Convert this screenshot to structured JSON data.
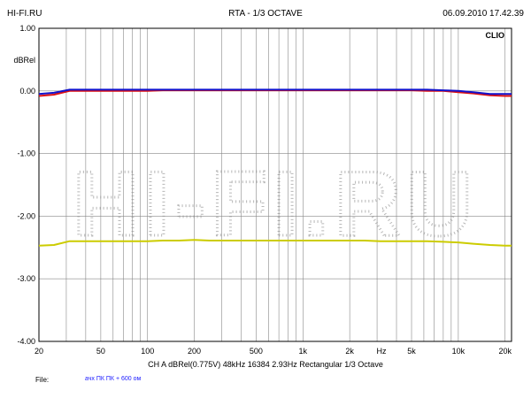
{
  "header": {
    "left": "HI-FI.RU",
    "center": "RTA - 1/3 OCTAVE",
    "right": "06.09.2010 17.42.39"
  },
  "info_line": "CH A  dBRel(0.775V)  48kHz  16384  2.93Hz  Rectangular  1/3 Octave",
  "file": {
    "label": "File:",
    "value": "ачх ПК ПК + 600 ом"
  },
  "watermark": "HI-FI.RU",
  "colors": {
    "grid": "#888888",
    "blue": "#1111cc",
    "red": "#dd1111",
    "yellow": "#cccc00",
    "watermark": "#b8b8b8",
    "file_text": "#1a1aff"
  },
  "chart_data": {
    "type": "line",
    "brand": "CLIO",
    "ylabel": "dBRel",
    "xlabel": "Hz",
    "x_scale": "log",
    "xlim": [
      20,
      22000
    ],
    "ylim": [
      -4.0,
      1.0
    ],
    "y_ticks": [
      "1.00",
      "0.00",
      "-1.00",
      "-2.00",
      "-3.00",
      "-4.00"
    ],
    "x_ticks": [
      {
        "value": 20,
        "label": "20"
      },
      {
        "value": 50,
        "label": "50"
      },
      {
        "value": 100,
        "label": "100"
      },
      {
        "value": 200,
        "label": "200"
      },
      {
        "value": 500,
        "label": "500"
      },
      {
        "value": 1000,
        "label": "1k"
      },
      {
        "value": 2000,
        "label": "2k"
      },
      {
        "value": 5000,
        "label": "5k"
      },
      {
        "value": 10000,
        "label": "10k"
      },
      {
        "value": 20000,
        "label": "20k"
      }
    ],
    "grid": true,
    "series": [
      {
        "color": "#cccc00",
        "x": [
          20,
          25,
          31.5,
          40,
          50,
          63,
          80,
          100,
          125,
          160,
          200,
          250,
          315,
          400,
          500,
          630,
          800,
          1000,
          1250,
          1600,
          2000,
          2500,
          3150,
          4000,
          5000,
          6300,
          8000,
          10000,
          12500,
          16000,
          20000,
          22000
        ],
        "y": [
          -2.47,
          -2.46,
          -2.4,
          -2.4,
          -2.4,
          -2.4,
          -2.4,
          -2.4,
          -2.39,
          -2.39,
          -2.38,
          -2.39,
          -2.39,
          -2.39,
          -2.39,
          -2.39,
          -2.39,
          -2.39,
          -2.39,
          -2.39,
          -2.39,
          -2.39,
          -2.4,
          -2.4,
          -2.4,
          -2.4,
          -2.41,
          -2.42,
          -2.44,
          -2.46,
          -2.47,
          -2.47
        ]
      },
      {
        "color": "#dd1111",
        "x": [
          20,
          25,
          31.5,
          40,
          50,
          63,
          80,
          100,
          125,
          160,
          200,
          250,
          315,
          400,
          500,
          630,
          800,
          1000,
          1250,
          1600,
          2000,
          2500,
          3150,
          4000,
          5000,
          6300,
          8000,
          10000,
          12500,
          16000,
          20000,
          22000
        ],
        "y": [
          -0.08,
          -0.06,
          0.0,
          0.0,
          0.0,
          0.0,
          0.0,
          0.0,
          0.01,
          0.01,
          0.01,
          0.01,
          0.01,
          0.01,
          0.01,
          0.01,
          0.01,
          0.01,
          0.01,
          0.01,
          0.01,
          0.01,
          0.01,
          0.01,
          0.01,
          0.0,
          0.0,
          -0.02,
          -0.04,
          -0.07,
          -0.08,
          -0.08
        ]
      },
      {
        "color": "#1111cc",
        "x": [
          20,
          25,
          31.5,
          40,
          50,
          63,
          80,
          100,
          125,
          160,
          200,
          250,
          315,
          400,
          500,
          630,
          800,
          1000,
          1250,
          1600,
          2000,
          2500,
          3150,
          4000,
          5000,
          6300,
          8000,
          10000,
          12500,
          16000,
          20000,
          22000
        ],
        "y": [
          -0.05,
          -0.03,
          0.02,
          0.02,
          0.02,
          0.02,
          0.02,
          0.02,
          0.02,
          0.02,
          0.02,
          0.02,
          0.02,
          0.02,
          0.02,
          0.02,
          0.02,
          0.02,
          0.02,
          0.02,
          0.02,
          0.02,
          0.02,
          0.02,
          0.02,
          0.02,
          0.01,
          0.0,
          -0.02,
          -0.05,
          -0.05,
          -0.05
        ]
      }
    ]
  }
}
